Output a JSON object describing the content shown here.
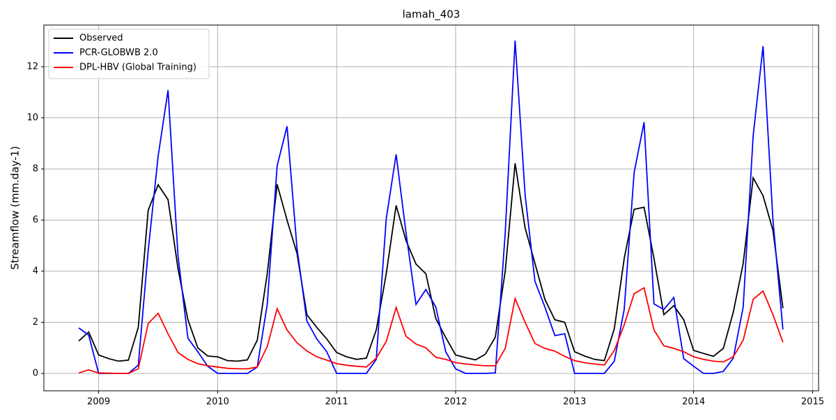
{
  "chart_data": {
    "type": "line",
    "title": "lamah_403",
    "ylabel": "Streamflow (mm.day-1)",
    "x": [
      "2008-11",
      "2008-12",
      "2009-01",
      "2009-02",
      "2009-03",
      "2009-04",
      "2009-05",
      "2009-06",
      "2009-07",
      "2009-08",
      "2009-09",
      "2009-10",
      "2009-11",
      "2009-12",
      "2010-01",
      "2010-02",
      "2010-03",
      "2010-04",
      "2010-05",
      "2010-06",
      "2010-07",
      "2010-08",
      "2010-09",
      "2010-10",
      "2010-11",
      "2010-12",
      "2011-01",
      "2011-02",
      "2011-03",
      "2011-04",
      "2011-05",
      "2011-06",
      "2011-07",
      "2011-08",
      "2011-09",
      "2011-10",
      "2011-11",
      "2011-12",
      "2012-01",
      "2012-02",
      "2012-03",
      "2012-04",
      "2012-05",
      "2012-06",
      "2012-07",
      "2012-08",
      "2012-09",
      "2012-10",
      "2012-11",
      "2012-12",
      "2013-01",
      "2013-02",
      "2013-03",
      "2013-04",
      "2013-05",
      "2013-06",
      "2013-07",
      "2013-08",
      "2013-09",
      "2013-10",
      "2013-11",
      "2013-12",
      "2014-01",
      "2014-02",
      "2014-03",
      "2014-04",
      "2014-05",
      "2014-06",
      "2014-07",
      "2014-08",
      "2014-09",
      "2014-10"
    ],
    "series": [
      {
        "name": "Observed",
        "color": "#000000",
        "values": [
          1.27,
          1.62,
          0.72,
          0.58,
          0.48,
          0.52,
          1.8,
          6.38,
          7.38,
          6.8,
          4.1,
          2.1,
          1.0,
          0.68,
          0.65,
          0.5,
          0.48,
          0.53,
          1.3,
          3.9,
          7.4,
          6.0,
          4.7,
          2.3,
          1.8,
          1.35,
          0.82,
          0.65,
          0.55,
          0.6,
          1.7,
          3.9,
          6.57,
          5.2,
          4.28,
          3.9,
          2.15,
          1.4,
          0.72,
          0.62,
          0.53,
          0.75,
          1.42,
          4.0,
          8.22,
          5.7,
          4.3,
          2.9,
          2.1,
          2.0,
          0.85,
          0.68,
          0.55,
          0.5,
          1.75,
          4.5,
          6.42,
          6.5,
          4.5,
          2.3,
          2.65,
          2.1,
          0.9,
          0.78,
          0.67,
          0.98,
          2.4,
          4.3,
          7.65,
          6.95,
          5.6,
          2.55
        ]
      },
      {
        "name": "PCR-GLOBWB 2.0",
        "color": "#0000ff",
        "values": [
          1.78,
          1.5,
          0,
          0,
          0,
          0,
          0.32,
          4.8,
          8.5,
          11.08,
          4.6,
          1.38,
          0.85,
          0.28,
          0,
          0,
          0,
          0,
          0.25,
          2.7,
          8.12,
          9.67,
          4.9,
          2.05,
          1.35,
          0.85,
          0,
          0,
          0,
          0,
          0.55,
          6.05,
          8.57,
          5.5,
          2.7,
          3.28,
          2.6,
          0.85,
          0.18,
          0,
          0,
          0,
          0.02,
          5.5,
          13.02,
          7.0,
          3.6,
          2.6,
          1.48,
          1.55,
          0,
          0,
          0,
          0,
          0.48,
          2.5,
          7.85,
          9.83,
          2.72,
          2.5,
          2.97,
          0.58,
          0.28,
          0,
          0,
          0.08,
          0.6,
          2.6,
          9.3,
          12.8,
          6.0,
          1.72
        ]
      },
      {
        "name": "DPL-HBV (Global Training)",
        "color": "#ff0000",
        "values": [
          0.02,
          0.14,
          0.02,
          0.01,
          0,
          0,
          0.18,
          1.95,
          2.35,
          1.55,
          0.82,
          0.55,
          0.38,
          0.3,
          0.25,
          0.2,
          0.18,
          0.18,
          0.25,
          1.05,
          2.53,
          1.7,
          1.2,
          0.88,
          0.65,
          0.52,
          0.38,
          0.32,
          0.28,
          0.25,
          0.6,
          1.25,
          2.58,
          1.45,
          1.15,
          1.0,
          0.63,
          0.55,
          0.42,
          0.37,
          0.33,
          0.3,
          0.3,
          0.98,
          2.93,
          2.0,
          1.17,
          0.98,
          0.87,
          0.67,
          0.5,
          0.42,
          0.37,
          0.33,
          0.9,
          1.9,
          3.12,
          3.35,
          1.7,
          1.08,
          0.98,
          0.85,
          0.65,
          0.55,
          0.48,
          0.45,
          0.65,
          1.3,
          2.9,
          3.22,
          2.3,
          1.22
        ]
      }
    ],
    "xlim": [
      2008.54,
      2015.05
    ],
    "xticks": [
      2009,
      2010,
      2011,
      2012,
      2013,
      2014,
      2015
    ],
    "ylim": [
      -0.68,
      13.63
    ],
    "yticks": [
      0,
      2,
      4,
      6,
      8,
      10,
      12
    ],
    "grid": true,
    "legend": "upper left"
  }
}
